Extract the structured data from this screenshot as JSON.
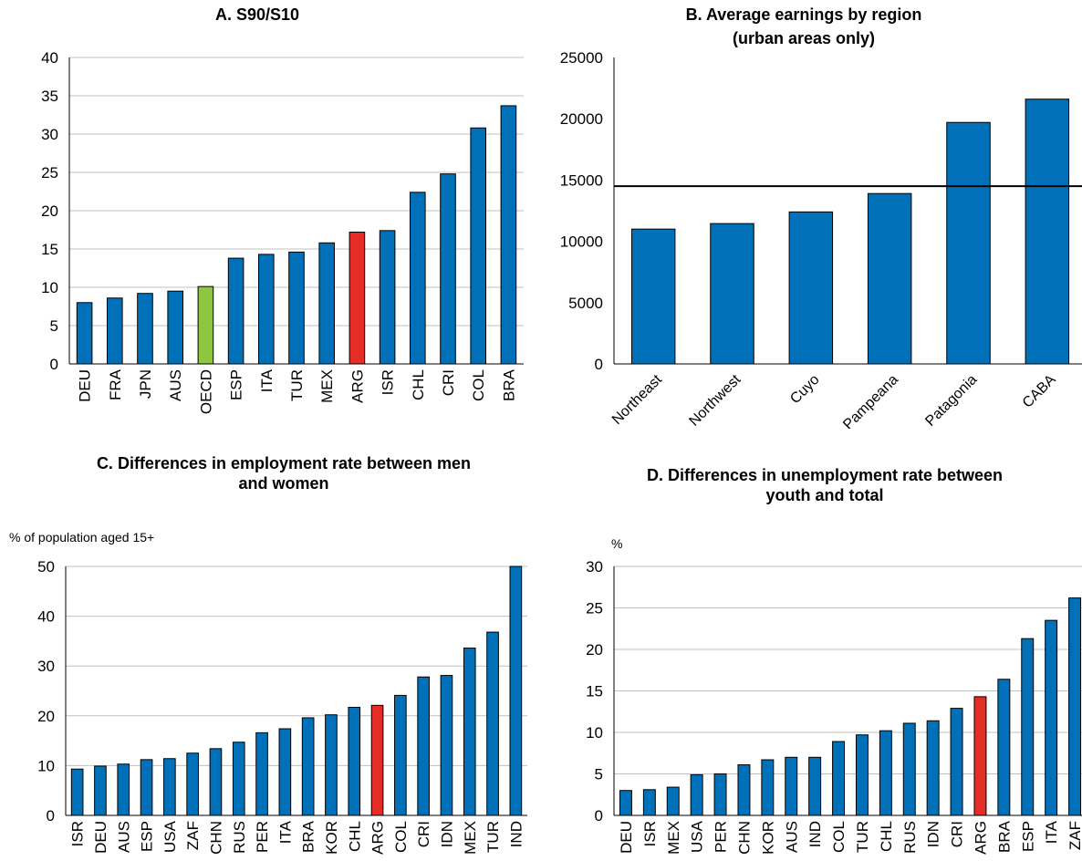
{
  "colors": {
    "bar": "#0070b8",
    "argentina": "#e32d26",
    "oecd": "#8dc63f",
    "grid": "#c0c0c0",
    "axis": "#000000"
  },
  "chart_data": [
    {
      "id": "A",
      "type": "bar",
      "title": [
        "A. S90/S10"
      ],
      "ylabel": "",
      "ylim": [
        0,
        40
      ],
      "yticks": [
        0,
        5,
        10,
        15,
        20,
        25,
        30,
        35,
        40
      ],
      "grid": true,
      "tick_rotation": -90,
      "categories": [
        "DEU",
        "FRA",
        "JPN",
        "AUS",
        "OECD",
        "ESP",
        "ITA",
        "TUR",
        "MEX",
        "ARG",
        "ISR",
        "CHL",
        "CRI",
        "COL",
        "BRA"
      ],
      "values": [
        8.0,
        8.6,
        9.2,
        9.5,
        10.1,
        13.8,
        14.3,
        14.6,
        15.8,
        17.2,
        17.4,
        22.4,
        24.8,
        30.8,
        33.7
      ],
      "highlight": {
        "ARG": "argentina",
        "OECD": "oecd"
      }
    },
    {
      "id": "B",
      "type": "bar",
      "title": [
        "B. Average earnings by region",
        "(urban areas only)"
      ],
      "ylabel": "",
      "ylim": [
        0,
        25000
      ],
      "yticks": [
        0,
        5000,
        10000,
        15000,
        20000,
        25000
      ],
      "grid": false,
      "tick_rotation": -45,
      "categories": [
        "Northeast",
        "Northwest",
        "Cuyo",
        "Pampeana",
        "Patagonia",
        "CABA"
      ],
      "values": [
        11000,
        11450,
        12400,
        13900,
        19700,
        21600
      ],
      "reference_line": 14500,
      "highlight": {}
    },
    {
      "id": "C",
      "type": "bar",
      "title": [
        "C. Differences in employment rate between men",
        "and women"
      ],
      "ylabel": "% of population aged 15+",
      "ylim": [
        0,
        50
      ],
      "yticks": [
        0,
        10,
        20,
        30,
        40,
        50
      ],
      "grid": true,
      "tick_rotation": -90,
      "categories": [
        "ISR",
        "DEU",
        "AUS",
        "ESP",
        "USA",
        "ZAF",
        "CHN",
        "RUS",
        "PER",
        "ITA",
        "BRA",
        "KOR",
        "CHL",
        "ARG",
        "COL",
        "CRI",
        "IDN",
        "MEX",
        "TUR",
        "IND"
      ],
      "values": [
        9.3,
        9.9,
        10.3,
        11.2,
        11.4,
        12.5,
        13.4,
        14.7,
        16.6,
        17.4,
        19.6,
        20.2,
        21.7,
        22.1,
        24.1,
        27.8,
        28.1,
        33.6,
        36.8,
        50.0
      ],
      "highlight": {
        "ARG": "argentina"
      }
    },
    {
      "id": "D",
      "type": "bar",
      "title": [
        "D. Differences in unemployment rate between",
        "youth and total"
      ],
      "ylabel": "%",
      "ylim": [
        0,
        30
      ],
      "yticks": [
        0,
        5,
        10,
        15,
        20,
        25,
        30
      ],
      "grid": true,
      "tick_rotation": -90,
      "categories": [
        "DEU",
        "ISR",
        "MEX",
        "USA",
        "PER",
        "CHN",
        "KOR",
        "AUS",
        "IND",
        "COL",
        "TUR",
        "CHL",
        "RUS",
        "IDN",
        "CRI",
        "ARG",
        "BRA",
        "ESP",
        "ITA",
        "ZAF"
      ],
      "values": [
        3.0,
        3.1,
        3.4,
        4.9,
        5.0,
        6.1,
        6.7,
        7.0,
        7.0,
        8.9,
        9.7,
        10.2,
        11.1,
        11.4,
        12.9,
        14.3,
        16.4,
        21.3,
        23.5,
        26.2
      ],
      "highlight": {
        "ARG": "argentina"
      }
    }
  ]
}
